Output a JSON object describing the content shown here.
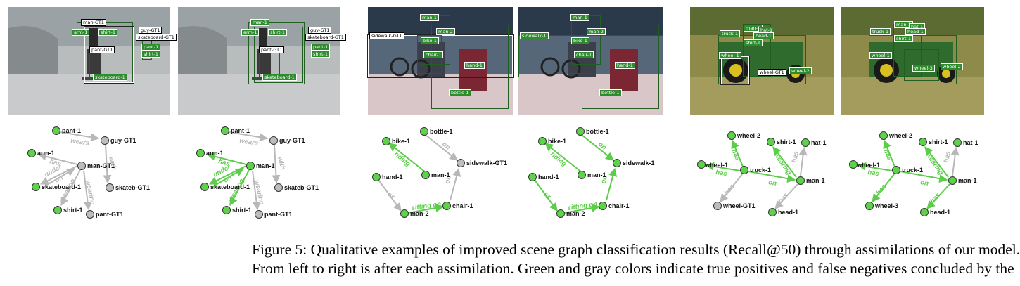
{
  "colors": {
    "positive": "#5ccd4a",
    "negative": "#b8b8b8",
    "node_positive": "#5fd24c",
    "node_negative": "#bdbdbd",
    "box_dark": "#1f5f1f"
  },
  "photos": {
    "skate_a": {
      "tags": [
        "man-GT1",
        "arm-1",
        "shirt-1",
        "guy-GT1",
        "skateboard-GT1",
        "pant-GT1",
        "pant-1",
        "shirt-1",
        "skateboard-1"
      ]
    },
    "skate_b": {
      "tags": [
        "man-1",
        "arm-1",
        "shirt-1",
        "guy-GT1",
        "skateboard-GT1",
        "pant-GT1",
        "pant-1",
        "shirt-1",
        "skateboard-1"
      ]
    },
    "bike_a": {
      "tags": [
        "man-1",
        "sidewalk-GT1",
        "man-2",
        "bike-1",
        "chair-1",
        "hand-1",
        "bottle-1"
      ]
    },
    "bike_b": {
      "tags": [
        "man-1",
        "sidewalk-1",
        "man-2",
        "bike-1",
        "chair-1",
        "hand-1",
        "bottle-1"
      ]
    },
    "truck_a": {
      "tags": [
        "man-1",
        "hat-1",
        "truck-1",
        "head-1",
        "shirt-1",
        "wheel-1",
        "wheel-GT1",
        "wheel-2"
      ]
    },
    "truck_b": {
      "tags": [
        "man-1",
        "hat-1",
        "truck-1",
        "head-1",
        "shirt-1",
        "wheel-1",
        "wheel-3",
        "wheel-2"
      ]
    }
  },
  "graphs": {
    "g1": {
      "nodes": [
        "pant-1",
        "guy-GT1",
        "arm-1",
        "man-GT1",
        "skateboard-1",
        "skateb-GT1",
        "shirt-1",
        "pant-GT1"
      ],
      "edges": [
        "wears",
        "with",
        "has",
        "under",
        "on",
        "wearing",
        "wearing"
      ]
    },
    "g2": {
      "nodes": [
        "pant-1",
        "guy-GT1",
        "arm-1",
        "man-1",
        "skateboard-1",
        "skateb-GT1",
        "shirt-1",
        "pant-GT1"
      ],
      "edges": [
        "wears",
        "with",
        "has",
        "under",
        "on",
        "wearing",
        "wearing"
      ]
    },
    "g3": {
      "nodes": [
        "bottle-1",
        "bike-1",
        "sidewalk-GT1",
        "man-1",
        "hand-1",
        "man-2",
        "chair-1"
      ],
      "edges": [
        "on",
        "riding",
        "on",
        "of",
        "sitting on"
      ]
    },
    "g4": {
      "nodes": [
        "bottle-1",
        "bike-1",
        "sidewalk-1",
        "man-1",
        "hand-1",
        "man-2",
        "chair-1"
      ],
      "edges": [
        "on",
        "riding",
        "on",
        "of",
        "sitting on"
      ]
    },
    "g5": {
      "nodes": [
        "wheel-2",
        "shirt-1",
        "hat-1",
        "wheel-1",
        "truck-1",
        "man-1",
        "wheel-GT1",
        "head-1"
      ],
      "edges": [
        "has",
        "wearing",
        "has",
        "has",
        "has",
        "on",
        "has"
      ]
    },
    "g6": {
      "nodes": [
        "wheel-2",
        "shirt-1",
        "hat-1",
        "wheel-1",
        "truck-1",
        "man-1",
        "wheel-3",
        "head-1"
      ],
      "edges": [
        "has",
        "wearing",
        "has",
        "has",
        "has",
        "on",
        "has"
      ]
    }
  },
  "caption": {
    "line1": "Figure 5: Qualitative examples of improved scene graph classification results (Recall@50) through assimilations of our model.",
    "line2": "From left to right is after each assimilation. Green and gray colors indicate true positives and false negatives concluded by the"
  }
}
